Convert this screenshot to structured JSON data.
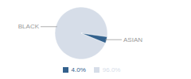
{
  "chart_data": {
    "type": "pie",
    "categories": [
      "BLACK",
      "ASIAN"
    ],
    "values": [
      96.0,
      4.0
    ],
    "value_labels": [
      "96.0%",
      "4.0%"
    ],
    "colors": [
      "#d6dde8",
      "#33618d"
    ],
    "legend": "bottom"
  }
}
